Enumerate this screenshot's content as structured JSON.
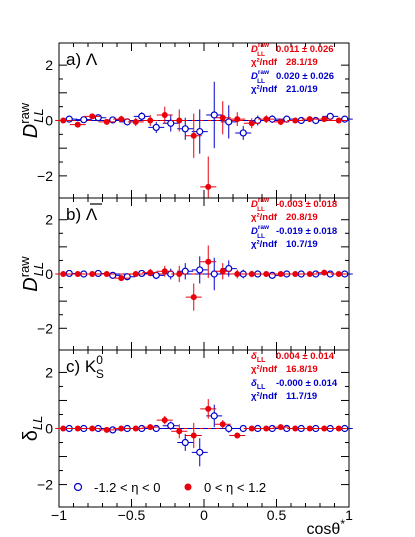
{
  "chart_data": [
    {
      "type": "scatter",
      "panel_label": "a)",
      "panel_symbol": "Λ",
      "ylabel_main": "D",
      "ylabel_sup": "raw",
      "ylabel_sub": "LL",
      "ylim": [
        -2.8,
        2.8
      ],
      "yticks": [
        -2,
        0,
        2
      ],
      "stats": [
        {
          "label": "D_LL^raw",
          "value": "0.011 ± 0.026",
          "chi_label": "χ²/ndf",
          "chi": "28.1/19",
          "color": "#e8000b"
        },
        {
          "label": "D_LL^raw",
          "value": "0.020 ± 0.026",
          "chi_label": "χ²/ndf",
          "chi": "21.0/19",
          "color": "#0000cc"
        }
      ],
      "series": [
        {
          "marker": "open-circle",
          "color": "#0000cc",
          "x": [
            -0.95,
            -0.85,
            -0.75,
            -0.65,
            -0.55,
            -0.45,
            -0.35,
            -0.25,
            -0.15,
            -0.05,
            0.05,
            0.15,
            0.25,
            0.35,
            0.45,
            0.55,
            0.65,
            0.75,
            0.85,
            0.95
          ],
          "y": [
            0.05,
            0.03,
            0.1,
            0.02,
            -0.05,
            0.15,
            -0.25,
            -0.1,
            -0.3,
            -0.4,
            0.2,
            -0.05,
            -0.45,
            0.0,
            0.05,
            0.05,
            0.0,
            0.0,
            0.15,
            0.05
          ],
          "err": [
            0.08,
            0.08,
            0.09,
            0.1,
            0.12,
            0.15,
            0.2,
            0.3,
            0.4,
            0.8,
            1.2,
            0.6,
            0.25,
            0.18,
            0.14,
            0.12,
            0.1,
            0.09,
            0.08,
            0.08
          ]
        },
        {
          "marker": "filled-circle",
          "color": "#e8000b",
          "x": [
            -0.95,
            -0.85,
            -0.75,
            -0.65,
            -0.55,
            -0.45,
            -0.35,
            -0.25,
            -0.15,
            -0.05,
            0.05,
            0.15,
            0.25,
            0.35,
            0.45,
            0.55,
            0.65,
            0.75,
            0.85,
            0.95
          ],
          "y": [
            0.0,
            -0.15,
            0.15,
            -0.05,
            0.05,
            -0.05,
            0.0,
            0.2,
            0.0,
            -0.55,
            -2.4,
            0.1,
            0.05,
            -0.1,
            0.05,
            -0.05,
            0.0,
            0.05,
            0.05,
            0.0
          ],
          "err": [
            0.08,
            0.08,
            0.09,
            0.1,
            0.12,
            0.15,
            0.2,
            0.3,
            0.4,
            0.8,
            1.1,
            0.6,
            0.25,
            0.18,
            0.14,
            0.12,
            0.1,
            0.09,
            0.08,
            0.08
          ]
        }
      ]
    },
    {
      "type": "scatter",
      "panel_label": "b)",
      "panel_symbol": "Λ",
      "panel_symbol_overline": true,
      "ylabel_main": "D",
      "ylabel_sup": "raw",
      "ylabel_sub": "LL",
      "ylim": [
        -2.8,
        2.8
      ],
      "yticks": [
        -2,
        0,
        2
      ],
      "stats": [
        {
          "label": "D_LL^raw",
          "value": "-0.003 ± 0.018",
          "chi_label": "χ²/ndf",
          "chi": "20.8/19",
          "color": "#e8000b"
        },
        {
          "label": "D_LL^raw",
          "value": "-0.019 ± 0.018",
          "chi_label": "χ²/ndf",
          "chi": "10.7/19",
          "color": "#0000cc"
        }
      ],
      "series": [
        {
          "marker": "open-circle",
          "color": "#0000cc",
          "x": [
            -0.95,
            -0.85,
            -0.75,
            -0.65,
            -0.55,
            -0.45,
            -0.35,
            -0.25,
            -0.15,
            -0.05,
            0.05,
            0.15,
            0.25,
            0.35,
            0.45,
            0.55,
            0.65,
            0.75,
            0.85,
            0.95
          ],
          "y": [
            0.02,
            0.0,
            0.02,
            -0.05,
            -0.1,
            0.02,
            -0.05,
            0.0,
            0.1,
            0.15,
            0.0,
            0.2,
            0.0,
            0.0,
            -0.05,
            0.0,
            0.0,
            0.0,
            0.0,
            0.0
          ],
          "err": [
            0.06,
            0.06,
            0.07,
            0.08,
            0.09,
            0.1,
            0.14,
            0.2,
            0.3,
            0.5,
            0.6,
            0.3,
            0.16,
            0.12,
            0.1,
            0.08,
            0.07,
            0.06,
            0.06,
            0.06
          ]
        },
        {
          "marker": "filled-circle",
          "color": "#e8000b",
          "x": [
            -0.95,
            -0.85,
            -0.75,
            -0.65,
            -0.55,
            -0.45,
            -0.35,
            -0.25,
            -0.15,
            -0.05,
            0.05,
            0.15,
            0.25,
            0.35,
            0.45,
            0.55,
            0.65,
            0.75,
            0.85,
            0.95
          ],
          "y": [
            0.0,
            0.0,
            0.0,
            0.0,
            -0.15,
            0.0,
            0.05,
            0.1,
            0.0,
            -0.85,
            0.45,
            0.1,
            0.0,
            0.0,
            0.0,
            0.0,
            0.0,
            0.0,
            0.05,
            0.0
          ],
          "err": [
            0.06,
            0.06,
            0.07,
            0.08,
            0.09,
            0.1,
            0.14,
            0.2,
            0.3,
            0.5,
            0.6,
            0.3,
            0.16,
            0.12,
            0.1,
            0.08,
            0.07,
            0.06,
            0.06,
            0.06
          ]
        }
      ]
    },
    {
      "type": "scatter",
      "panel_label": "c)",
      "panel_symbol": "K",
      "panel_symbol_sup": "0",
      "panel_symbol_sub": "S",
      "ylabel_main": "δ",
      "ylabel_sup": "",
      "ylabel_sub": "LL",
      "ylim": [
        -2.8,
        2.8
      ],
      "yticks": [
        -2,
        0,
        2
      ],
      "stats": [
        {
          "label": "δ_LL",
          "value": "0.004 ± 0.014",
          "chi_label": "χ²/ndf",
          "chi": "16.8/19",
          "color": "#e8000b"
        },
        {
          "label": "δ_LL",
          "value": "-0.000 ± 0.014",
          "chi_label": "χ²/ndf",
          "chi": "11.7/19",
          "color": "#0000cc"
        }
      ],
      "series": [
        {
          "marker": "open-circle",
          "color": "#0000cc",
          "x": [
            -0.95,
            -0.85,
            -0.75,
            -0.65,
            -0.55,
            -0.45,
            -0.35,
            -0.25,
            -0.15,
            -0.05,
            0.05,
            0.15,
            0.25,
            0.35,
            0.45,
            0.55,
            0.65,
            0.75,
            0.85,
            0.95
          ],
          "y": [
            0.0,
            0.0,
            0.0,
            -0.05,
            0.0,
            0.0,
            0.0,
            0.1,
            -0.5,
            -0.85,
            0.45,
            0.0,
            0.0,
            0.0,
            0.0,
            0.0,
            0.0,
            0.0,
            0.0,
            0.0
          ],
          "err": [
            0.05,
            0.05,
            0.05,
            0.06,
            0.07,
            0.08,
            0.1,
            0.15,
            0.3,
            0.5,
            0.4,
            0.15,
            0.1,
            0.08,
            0.07,
            0.06,
            0.05,
            0.05,
            0.05,
            0.05
          ]
        },
        {
          "marker": "filled-circle",
          "color": "#e8000b",
          "x": [
            -0.95,
            -0.85,
            -0.75,
            -0.65,
            -0.55,
            -0.45,
            -0.35,
            -0.25,
            -0.15,
            -0.05,
            0.05,
            0.15,
            0.25,
            0.35,
            0.45,
            0.55,
            0.65,
            0.75,
            0.85,
            0.95
          ],
          "y": [
            0.0,
            0.0,
            0.0,
            -0.05,
            0.0,
            0.0,
            0.05,
            0.3,
            -0.1,
            -0.25,
            0.7,
            0.15,
            -0.25,
            0.0,
            0.0,
            0.05,
            0.0,
            0.0,
            0.0,
            0.0
          ],
          "err": [
            0.05,
            0.05,
            0.05,
            0.06,
            0.07,
            0.08,
            0.1,
            0.15,
            0.25,
            0.45,
            0.35,
            0.15,
            0.1,
            0.08,
            0.07,
            0.06,
            0.05,
            0.05,
            0.05,
            0.05
          ]
        }
      ]
    }
  ],
  "xaxis": {
    "label_main": "cosθ",
    "label_sup": "*",
    "xlim": [
      -1,
      1
    ],
    "ticks": [
      -1,
      -0.5,
      0,
      0.5,
      1
    ],
    "ticklabels": [
      "−1",
      "−0.5",
      "0",
      "0.5",
      "1"
    ]
  },
  "legend": {
    "placement": "bottom",
    "entries": [
      {
        "text": "-1.2 < η < 0",
        "marker": "open-circle",
        "color": "#0000cc"
      },
      {
        "text": "0 < η < 1.2",
        "marker": "filled-circle",
        "color": "#e8000b"
      }
    ]
  }
}
